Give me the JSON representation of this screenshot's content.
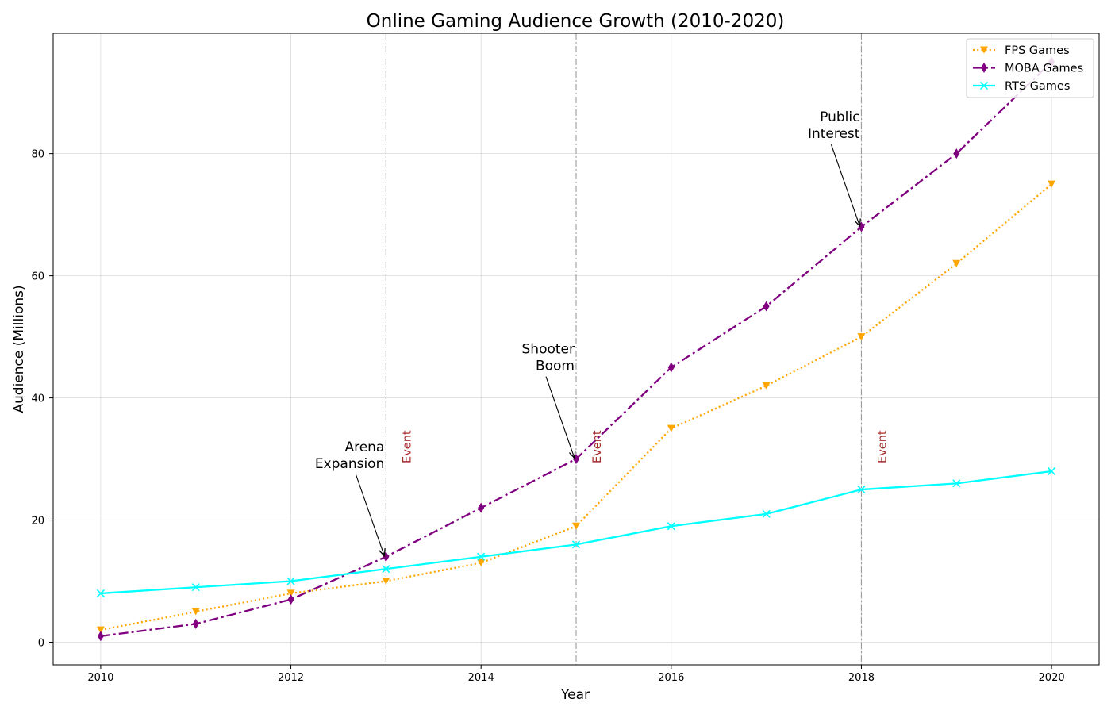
{
  "chart_data": {
    "type": "line",
    "title": "Online Gaming Audience Growth (2010-2020)",
    "xlabel": "Year",
    "ylabel": "Audience (Millions)",
    "xlim": [
      2009.5,
      2020.5
    ],
    "ylim": [
      -3.7,
      99.7
    ],
    "x": [
      2010,
      2011,
      2012,
      2013,
      2014,
      2015,
      2016,
      2017,
      2018,
      2019,
      2020
    ],
    "x_ticks": [
      2010,
      2012,
      2014,
      2016,
      2018,
      2020
    ],
    "y_ticks": [
      0,
      20,
      40,
      60,
      80
    ],
    "grid": true,
    "legend_position": "top-right",
    "series": [
      {
        "name": "FPS Games",
        "color": "#ffa500",
        "line_style": "dotted",
        "marker": "triangle-down",
        "values": [
          2,
          5,
          8,
          10,
          13,
          19,
          35,
          42,
          50,
          62,
          75
        ]
      },
      {
        "name": "MOBA Games",
        "color": "#800080",
        "line_style": "dash-dot",
        "marker": "thin-diamond",
        "values": [
          1,
          3,
          7,
          14,
          22,
          30,
          45,
          55,
          68,
          80,
          95
        ]
      },
      {
        "name": "RTS Games",
        "color": "#00ffff",
        "line_style": "solid",
        "marker": "x",
        "values": [
          8,
          9,
          10,
          12,
          14,
          16,
          19,
          21,
          25,
          26,
          28
        ]
      }
    ],
    "annotations": [
      {
        "lines": [
          "Arena",
          "Expansion"
        ],
        "target": [
          2013,
          14
        ],
        "text_at": [
          2013,
          31
        ]
      },
      {
        "lines": [
          "Shooter",
          "Boom"
        ],
        "target": [
          2015,
          30
        ],
        "text_at": [
          2015,
          47
        ]
      },
      {
        "lines": [
          "Public",
          "Interest"
        ],
        "target": [
          2018,
          68
        ],
        "text_at": [
          2018,
          85
        ]
      }
    ],
    "event_lines": [
      {
        "x": 2013,
        "label": "Event"
      },
      {
        "x": 2015,
        "label": "Event"
      },
      {
        "x": 2018,
        "label": "Event"
      }
    ]
  }
}
